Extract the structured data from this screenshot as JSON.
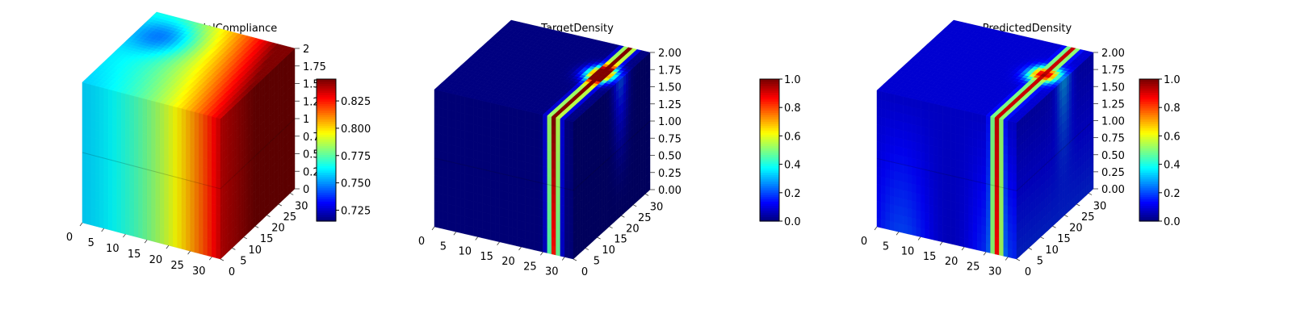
{
  "chart_data": [
    {
      "type": "heatmap",
      "title": "InitialCompliance",
      "x_ticks": [
        "0",
        "5",
        "10",
        "15",
        "20",
        "25",
        "30"
      ],
      "y_ticks": [
        "0",
        "5",
        "10",
        "15",
        "20",
        "25",
        "30"
      ],
      "z_ticks": [
        "0",
        "0.25",
        "0.5",
        "0.75",
        "1",
        "1.25",
        "1.5",
        "1.75",
        "2"
      ],
      "colorbar": {
        "ticks": [
          "0.725",
          "0.750",
          "0.775",
          "0.800",
          "0.825"
        ],
        "range": [
          0.715,
          0.845
        ],
        "cmap": "jet"
      },
      "field": "compliance"
    },
    {
      "type": "heatmap",
      "title": "TargetDensity",
      "x_ticks": [
        "0",
        "5",
        "10",
        "15",
        "20",
        "25",
        "30"
      ],
      "y_ticks": [
        "0",
        "5",
        "10",
        "15",
        "20",
        "25",
        "30"
      ],
      "z_ticks": [
        "0.00",
        "0.25",
        "0.50",
        "0.75",
        "1.00",
        "1.25",
        "1.50",
        "1.75",
        "2.00"
      ],
      "colorbar": {
        "ticks": [
          "0.0",
          "0.2",
          "0.4",
          "0.6",
          "0.8",
          "1.0"
        ],
        "range": [
          0,
          1
        ],
        "cmap": "jet"
      },
      "field": "target"
    },
    {
      "type": "heatmap",
      "title": "PredictedDensity",
      "x_ticks": [
        "0",
        "5",
        "10",
        "15",
        "20",
        "25",
        "30"
      ],
      "y_ticks": [
        "0",
        "5",
        "10",
        "15",
        "20",
        "25",
        "30"
      ],
      "z_ticks": [
        "0.00",
        "0.25",
        "0.50",
        "0.75",
        "1.00",
        "1.25",
        "1.50",
        "1.75",
        "2.00"
      ],
      "colorbar": {
        "ticks": [
          "0.0",
          "0.2",
          "0.4",
          "0.6",
          "0.8",
          "1.0"
        ],
        "range": [
          0,
          1
        ],
        "cmap": "jet"
      },
      "field": "predicted"
    }
  ]
}
